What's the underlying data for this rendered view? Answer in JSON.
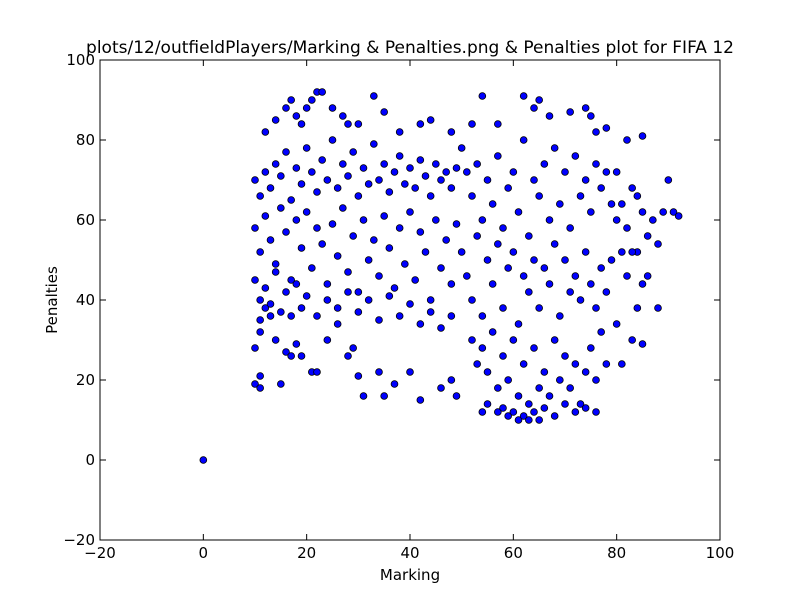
{
  "chart_data": {
    "type": "scatter",
    "title": "plots/12/outfieldPlayers/Marking & Penalties.png & Penalties plot for FIFA 12",
    "xlabel": "Marking",
    "ylabel": "Penalties",
    "xlim": [
      -20,
      100
    ],
    "ylim": [
      -20,
      100
    ],
    "xticks": [
      -20,
      0,
      20,
      40,
      60,
      80,
      100
    ],
    "yticks": [
      -20,
      0,
      20,
      40,
      60,
      80,
      100
    ],
    "xtick_labels": [
      "−20",
      "0",
      "20",
      "40",
      "60",
      "80",
      "100"
    ],
    "ytick_labels": [
      "−20",
      "0",
      "20",
      "40",
      "60",
      "80",
      "100"
    ],
    "grid": false,
    "legend": false,
    "marker_color": "#0000ff",
    "marker_edge_color": "#000000",
    "points": [
      [
        0,
        0
      ],
      [
        10,
        19
      ],
      [
        11,
        18
      ],
      [
        11,
        21
      ],
      [
        10,
        28
      ],
      [
        11,
        32
      ],
      [
        11,
        35
      ],
      [
        12,
        38
      ],
      [
        13,
        36
      ],
      [
        14,
        30
      ],
      [
        15,
        19
      ],
      [
        16,
        27
      ],
      [
        17,
        26
      ],
      [
        19,
        26
      ],
      [
        18,
        29
      ],
      [
        21,
        22
      ],
      [
        22,
        22
      ],
      [
        24,
        30
      ],
      [
        26,
        34
      ],
      [
        28,
        26
      ],
      [
        29,
        28
      ],
      [
        30,
        21
      ],
      [
        31,
        16
      ],
      [
        34,
        22
      ],
      [
        35,
        16
      ],
      [
        37,
        19
      ],
      [
        42,
        15
      ],
      [
        40,
        22
      ],
      [
        46,
        18
      ],
      [
        49,
        16
      ],
      [
        48,
        20
      ],
      [
        12,
        82
      ],
      [
        14,
        85
      ],
      [
        16,
        88
      ],
      [
        17,
        90
      ],
      [
        18,
        86
      ],
      [
        19,
        84
      ],
      [
        20,
        88
      ],
      [
        21,
        90
      ],
      [
        22,
        92
      ],
      [
        23,
        92
      ],
      [
        25,
        88
      ],
      [
        27,
        86
      ],
      [
        28,
        84
      ],
      [
        30,
        84
      ],
      [
        33,
        91
      ],
      [
        35,
        87
      ],
      [
        38,
        82
      ],
      [
        42,
        84
      ],
      [
        44,
        85
      ],
      [
        48,
        82
      ],
      [
        52,
        84
      ],
      [
        54,
        91
      ],
      [
        57,
        84
      ],
      [
        62,
        91
      ],
      [
        64,
        88
      ],
      [
        65,
        90
      ],
      [
        67,
        86
      ],
      [
        71,
        87
      ],
      [
        74,
        88
      ],
      [
        75,
        86
      ],
      [
        76,
        82
      ],
      [
        78,
        83
      ],
      [
        82,
        80
      ],
      [
        85,
        81
      ],
      [
        10,
        70
      ],
      [
        11,
        66
      ],
      [
        12,
        72
      ],
      [
        13,
        68
      ],
      [
        14,
        74
      ],
      [
        15,
        71
      ],
      [
        16,
        77
      ],
      [
        17,
        65
      ],
      [
        18,
        73
      ],
      [
        19,
        69
      ],
      [
        20,
        78
      ],
      [
        21,
        72
      ],
      [
        22,
        67
      ],
      [
        23,
        75
      ],
      [
        24,
        70
      ],
      [
        25,
        80
      ],
      [
        26,
        68
      ],
      [
        27,
        74
      ],
      [
        28,
        71
      ],
      [
        29,
        77
      ],
      [
        30,
        66
      ],
      [
        31,
        73
      ],
      [
        32,
        69
      ],
      [
        33,
        79
      ],
      [
        34,
        70
      ],
      [
        35,
        74
      ],
      [
        36,
        67
      ],
      [
        37,
        72
      ],
      [
        38,
        76
      ],
      [
        39,
        69
      ],
      [
        40,
        73
      ],
      [
        41,
        68
      ],
      [
        42,
        75
      ],
      [
        43,
        71
      ],
      [
        44,
        66
      ],
      [
        45,
        74
      ],
      [
        46,
        70
      ],
      [
        47,
        72
      ],
      [
        48,
        68
      ],
      [
        49,
        73
      ],
      [
        10,
        58
      ],
      [
        11,
        52
      ],
      [
        12,
        61
      ],
      [
        13,
        55
      ],
      [
        14,
        49
      ],
      [
        15,
        63
      ],
      [
        16,
        57
      ],
      [
        17,
        45
      ],
      [
        18,
        60
      ],
      [
        19,
        53
      ],
      [
        20,
        62
      ],
      [
        21,
        48
      ],
      [
        22,
        58
      ],
      [
        23,
        54
      ],
      [
        24,
        44
      ],
      [
        25,
        59
      ],
      [
        26,
        51
      ],
      [
        27,
        63
      ],
      [
        28,
        47
      ],
      [
        29,
        56
      ],
      [
        30,
        42
      ],
      [
        31,
        60
      ],
      [
        32,
        50
      ],
      [
        33,
        55
      ],
      [
        34,
        46
      ],
      [
        35,
        61
      ],
      [
        36,
        53
      ],
      [
        37,
        43
      ],
      [
        38,
        58
      ],
      [
        39,
        49
      ],
      [
        40,
        62
      ],
      [
        41,
        45
      ],
      [
        42,
        57
      ],
      [
        43,
        52
      ],
      [
        44,
        40
      ],
      [
        45,
        60
      ],
      [
        46,
        48
      ],
      [
        47,
        55
      ],
      [
        48,
        44
      ],
      [
        49,
        59
      ],
      [
        10,
        45
      ],
      [
        11,
        40
      ],
      [
        12,
        43
      ],
      [
        13,
        39
      ],
      [
        14,
        47
      ],
      [
        15,
        37
      ],
      [
        16,
        42
      ],
      [
        17,
        36
      ],
      [
        18,
        44
      ],
      [
        19,
        38
      ],
      [
        20,
        41
      ],
      [
        22,
        36
      ],
      [
        24,
        40
      ],
      [
        26,
        38
      ],
      [
        28,
        42
      ],
      [
        30,
        37
      ],
      [
        32,
        40
      ],
      [
        34,
        35
      ],
      [
        36,
        41
      ],
      [
        38,
        36
      ],
      [
        40,
        39
      ],
      [
        42,
        34
      ],
      [
        44,
        37
      ],
      [
        46,
        33
      ],
      [
        48,
        36
      ],
      [
        50,
        78
      ],
      [
        51,
        72
      ],
      [
        52,
        66
      ],
      [
        53,
        74
      ],
      [
        54,
        60
      ],
      [
        55,
        70
      ],
      [
        56,
        64
      ],
      [
        57,
        76
      ],
      [
        58,
        58
      ],
      [
        59,
        68
      ],
      [
        60,
        72
      ],
      [
        61,
        62
      ],
      [
        62,
        80
      ],
      [
        63,
        56
      ],
      [
        64,
        70
      ],
      [
        65,
        66
      ],
      [
        66,
        74
      ],
      [
        67,
        60
      ],
      [
        68,
        78
      ],
      [
        69,
        64
      ],
      [
        70,
        72
      ],
      [
        71,
        58
      ],
      [
        72,
        76
      ],
      [
        73,
        66
      ],
      [
        74,
        70
      ],
      [
        75,
        62
      ],
      [
        76,
        74
      ],
      [
        77,
        68
      ],
      [
        78,
        72
      ],
      [
        79,
        64
      ],
      [
        50,
        52
      ],
      [
        51,
        46
      ],
      [
        52,
        40
      ],
      [
        53,
        56
      ],
      [
        54,
        36
      ],
      [
        55,
        50
      ],
      [
        56,
        44
      ],
      [
        57,
        54
      ],
      [
        58,
        38
      ],
      [
        59,
        48
      ],
      [
        60,
        52
      ],
      [
        61,
        34
      ],
      [
        62,
        46
      ],
      [
        63,
        42
      ],
      [
        64,
        50
      ],
      [
        65,
        38
      ],
      [
        66,
        48
      ],
      [
        67,
        44
      ],
      [
        68,
        54
      ],
      [
        69,
        36
      ],
      [
        70,
        50
      ],
      [
        71,
        42
      ],
      [
        72,
        46
      ],
      [
        73,
        40
      ],
      [
        74,
        52
      ],
      [
        75,
        44
      ],
      [
        76,
        38
      ],
      [
        77,
        48
      ],
      [
        78,
        42
      ],
      [
        79,
        50
      ],
      [
        52,
        30
      ],
      [
        53,
        24
      ],
      [
        54,
        28
      ],
      [
        55,
        22
      ],
      [
        56,
        32
      ],
      [
        57,
        18
      ],
      [
        58,
        26
      ],
      [
        59,
        20
      ],
      [
        60,
        30
      ],
      [
        61,
        16
      ],
      [
        62,
        24
      ],
      [
        63,
        14
      ],
      [
        64,
        28
      ],
      [
        65,
        18
      ],
      [
        66,
        22
      ],
      [
        67,
        16
      ],
      [
        68,
        30
      ],
      [
        69,
        20
      ],
      [
        70,
        26
      ],
      [
        71,
        18
      ],
      [
        72,
        24
      ],
      [
        73,
        14
      ],
      [
        74,
        22
      ],
      [
        75,
        28
      ],
      [
        76,
        20
      ],
      [
        77,
        32
      ],
      [
        78,
        24
      ],
      [
        54,
        12
      ],
      [
        55,
        14
      ],
      [
        57,
        12
      ],
      [
        58,
        13
      ],
      [
        59,
        11
      ],
      [
        60,
        12
      ],
      [
        61,
        10
      ],
      [
        62,
        11
      ],
      [
        63,
        10
      ],
      [
        64,
        12
      ],
      [
        65,
        10
      ],
      [
        66,
        13
      ],
      [
        68,
        11
      ],
      [
        70,
        14
      ],
      [
        72,
        12
      ],
      [
        74,
        13
      ],
      [
        76,
        12
      ],
      [
        80,
        72
      ],
      [
        81,
        64
      ],
      [
        82,
        58
      ],
      [
        83,
        68
      ],
      [
        84,
        52
      ],
      [
        85,
        62
      ],
      [
        86,
        56
      ],
      [
        87,
        60
      ],
      [
        88,
        54
      ],
      [
        89,
        62
      ],
      [
        90,
        70
      ],
      [
        91,
        62
      ],
      [
        92,
        61
      ],
      [
        85,
        44
      ],
      [
        84,
        38
      ],
      [
        86,
        46
      ],
      [
        88,
        38
      ],
      [
        85,
        29
      ],
      [
        83,
        30
      ],
      [
        81,
        24
      ],
      [
        80,
        34
      ],
      [
        82,
        46
      ],
      [
        81,
        52
      ],
      [
        80,
        60
      ],
      [
        83,
        52
      ],
      [
        84,
        66
      ]
    ]
  }
}
